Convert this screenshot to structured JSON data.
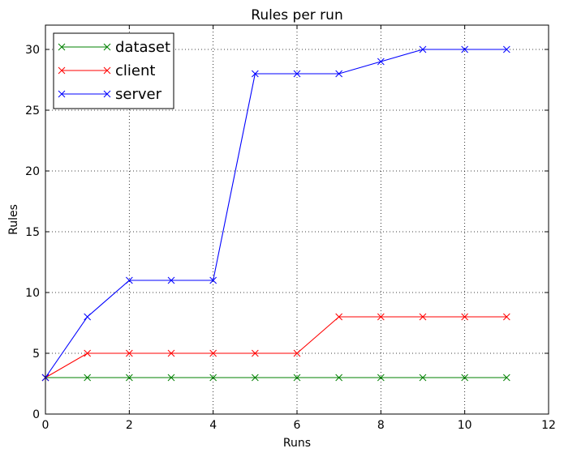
{
  "chart_data": {
    "type": "line",
    "title": "Rules per run",
    "xlabel": "Runs",
    "ylabel": "Rules",
    "xlim": [
      0,
      12
    ],
    "ylim": [
      0,
      32
    ],
    "xticks": [
      0,
      2,
      4,
      6,
      8,
      10,
      12
    ],
    "yticks": [
      0,
      5,
      10,
      15,
      20,
      25,
      30
    ],
    "grid": true,
    "legend_position": "top-left",
    "marker": "x",
    "x": [
      0,
      1,
      2,
      3,
      4,
      5,
      6,
      7,
      8,
      9,
      10,
      11
    ],
    "series": [
      {
        "name": "dataset",
        "color": "#008000",
        "values": [
          3,
          3,
          3,
          3,
          3,
          3,
          3,
          3,
          3,
          3,
          3,
          3
        ]
      },
      {
        "name": "client",
        "color": "#ff0000",
        "values": [
          3,
          5,
          5,
          5,
          5,
          5,
          5,
          8,
          8,
          8,
          8,
          8
        ]
      },
      {
        "name": "server",
        "color": "#0000ff",
        "values": [
          3,
          8,
          11,
          11,
          11,
          28,
          28,
          28,
          29,
          30,
          30,
          30
        ]
      }
    ]
  }
}
